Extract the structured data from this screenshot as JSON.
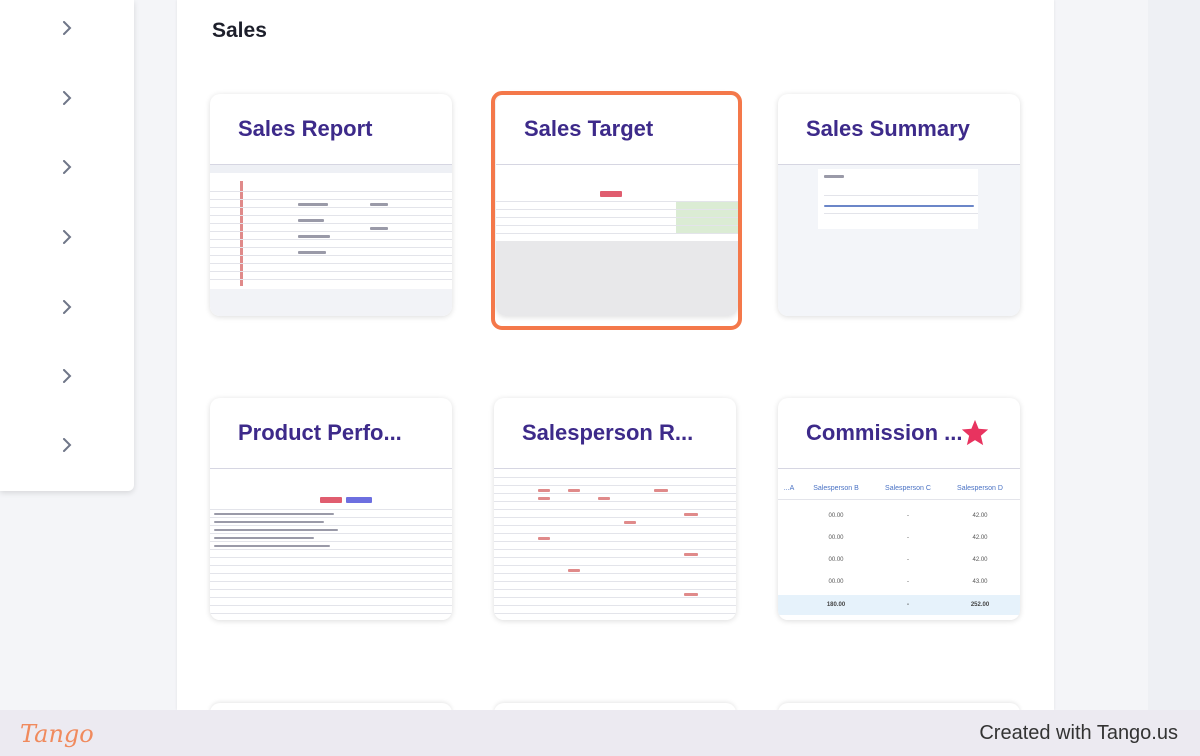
{
  "sidebar": {
    "items": [
      {
        "icon": "chevron-right-icon"
      },
      {
        "icon": "chevron-right-icon"
      },
      {
        "icon": "chevron-right-icon"
      },
      {
        "icon": "chevron-right-icon"
      },
      {
        "icon": "chevron-right-icon"
      },
      {
        "icon": "chevron-right-icon"
      },
      {
        "icon": "chevron-right-icon"
      }
    ]
  },
  "main": {
    "section_title": "Sales",
    "cards": [
      {
        "title": "Sales Report"
      },
      {
        "title": "Sales Target",
        "highlighted": true
      },
      {
        "title": "Sales Summary"
      },
      {
        "title": "Product Perfo..."
      },
      {
        "title": "Salesperson R..."
      },
      {
        "title": "Commission ...",
        "starred": true
      }
    ],
    "commission_thumb": {
      "headers": [
        "...A",
        "Salesperson B",
        "Salesperson C",
        "Salesperson D"
      ],
      "rows": [
        [
          "",
          "00.00",
          "-",
          "42.00"
        ],
        [
          "",
          "00.00",
          "-",
          "42.00"
        ],
        [
          "",
          "00.00",
          "-",
          "42.00"
        ],
        [
          "",
          "00.00",
          "-",
          "43.00"
        ]
      ],
      "total": [
        "",
        "180.00",
        "-",
        "252.00"
      ]
    }
  },
  "colors": {
    "accent": "#f4784a",
    "card_title": "#3d2a8a",
    "star": "#e8335f"
  },
  "footer": {
    "logo": "Tango",
    "credit": "Created with Tango.us"
  }
}
